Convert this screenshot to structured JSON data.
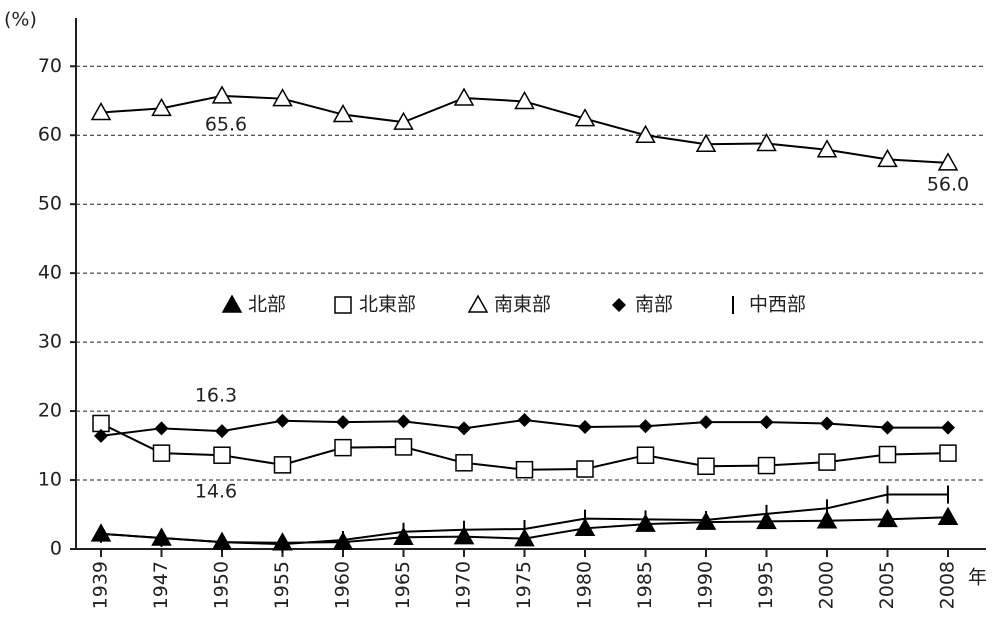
{
  "chart_data": {
    "type": "line",
    "y_unit_label": "(%)",
    "x_unit_label": "年",
    "categories": [
      "1939",
      "1947",
      "1950",
      "1955",
      "1960",
      "1965",
      "1970",
      "1975",
      "1980",
      "1985",
      "1990",
      "1995",
      "2000",
      "2005",
      "2008"
    ],
    "ylim": [
      0,
      77
    ],
    "yticks": [
      0,
      10,
      20,
      30,
      40,
      50,
      60,
      70
    ],
    "grid": true,
    "series": [
      {
        "name": "北部",
        "color": "#000000",
        "marker": "triangle-filled",
        "values": [
          2.2,
          1.6,
          1.0,
          0.9,
          1.0,
          1.7,
          1.8,
          1.5,
          3.0,
          3.6,
          3.9,
          4.0,
          4.1,
          4.3,
          4.6
        ]
      },
      {
        "name": "北東部",
        "color": "#000000",
        "marker": "square-open",
        "values": [
          18.2,
          13.9,
          13.6,
          12.2,
          14.7,
          14.8,
          12.5,
          11.5,
          11.6,
          13.6,
          12.0,
          12.1,
          12.6,
          13.7,
          13.9
        ]
      },
      {
        "name": "南東部",
        "color": "#000000",
        "marker": "triangle-open",
        "values": [
          63.3,
          63.9,
          65.7,
          65.3,
          63.0,
          61.9,
          65.4,
          64.9,
          62.4,
          60.0,
          58.7,
          58.8,
          57.9,
          56.5,
          56.0
        ]
      },
      {
        "name": "南部",
        "color": "#000000",
        "marker": "diamond-filled",
        "values": [
          16.4,
          17.5,
          17.1,
          18.6,
          18.4,
          18.5,
          17.5,
          18.7,
          17.7,
          17.8,
          18.4,
          18.4,
          18.2,
          17.6,
          17.6
        ]
      },
      {
        "name": "中西部",
        "color": "#000000",
        "marker": "bar",
        "values": [
          2.2,
          1.6,
          1.0,
          0.7,
          1.3,
          2.5,
          2.8,
          2.9,
          4.4,
          4.3,
          4.2,
          5.1,
          5.9,
          7.9,
          7.9
        ]
      }
    ],
    "annotations": [
      "65.6",
      "56.0",
      "16.3",
      "14.6"
    ]
  }
}
